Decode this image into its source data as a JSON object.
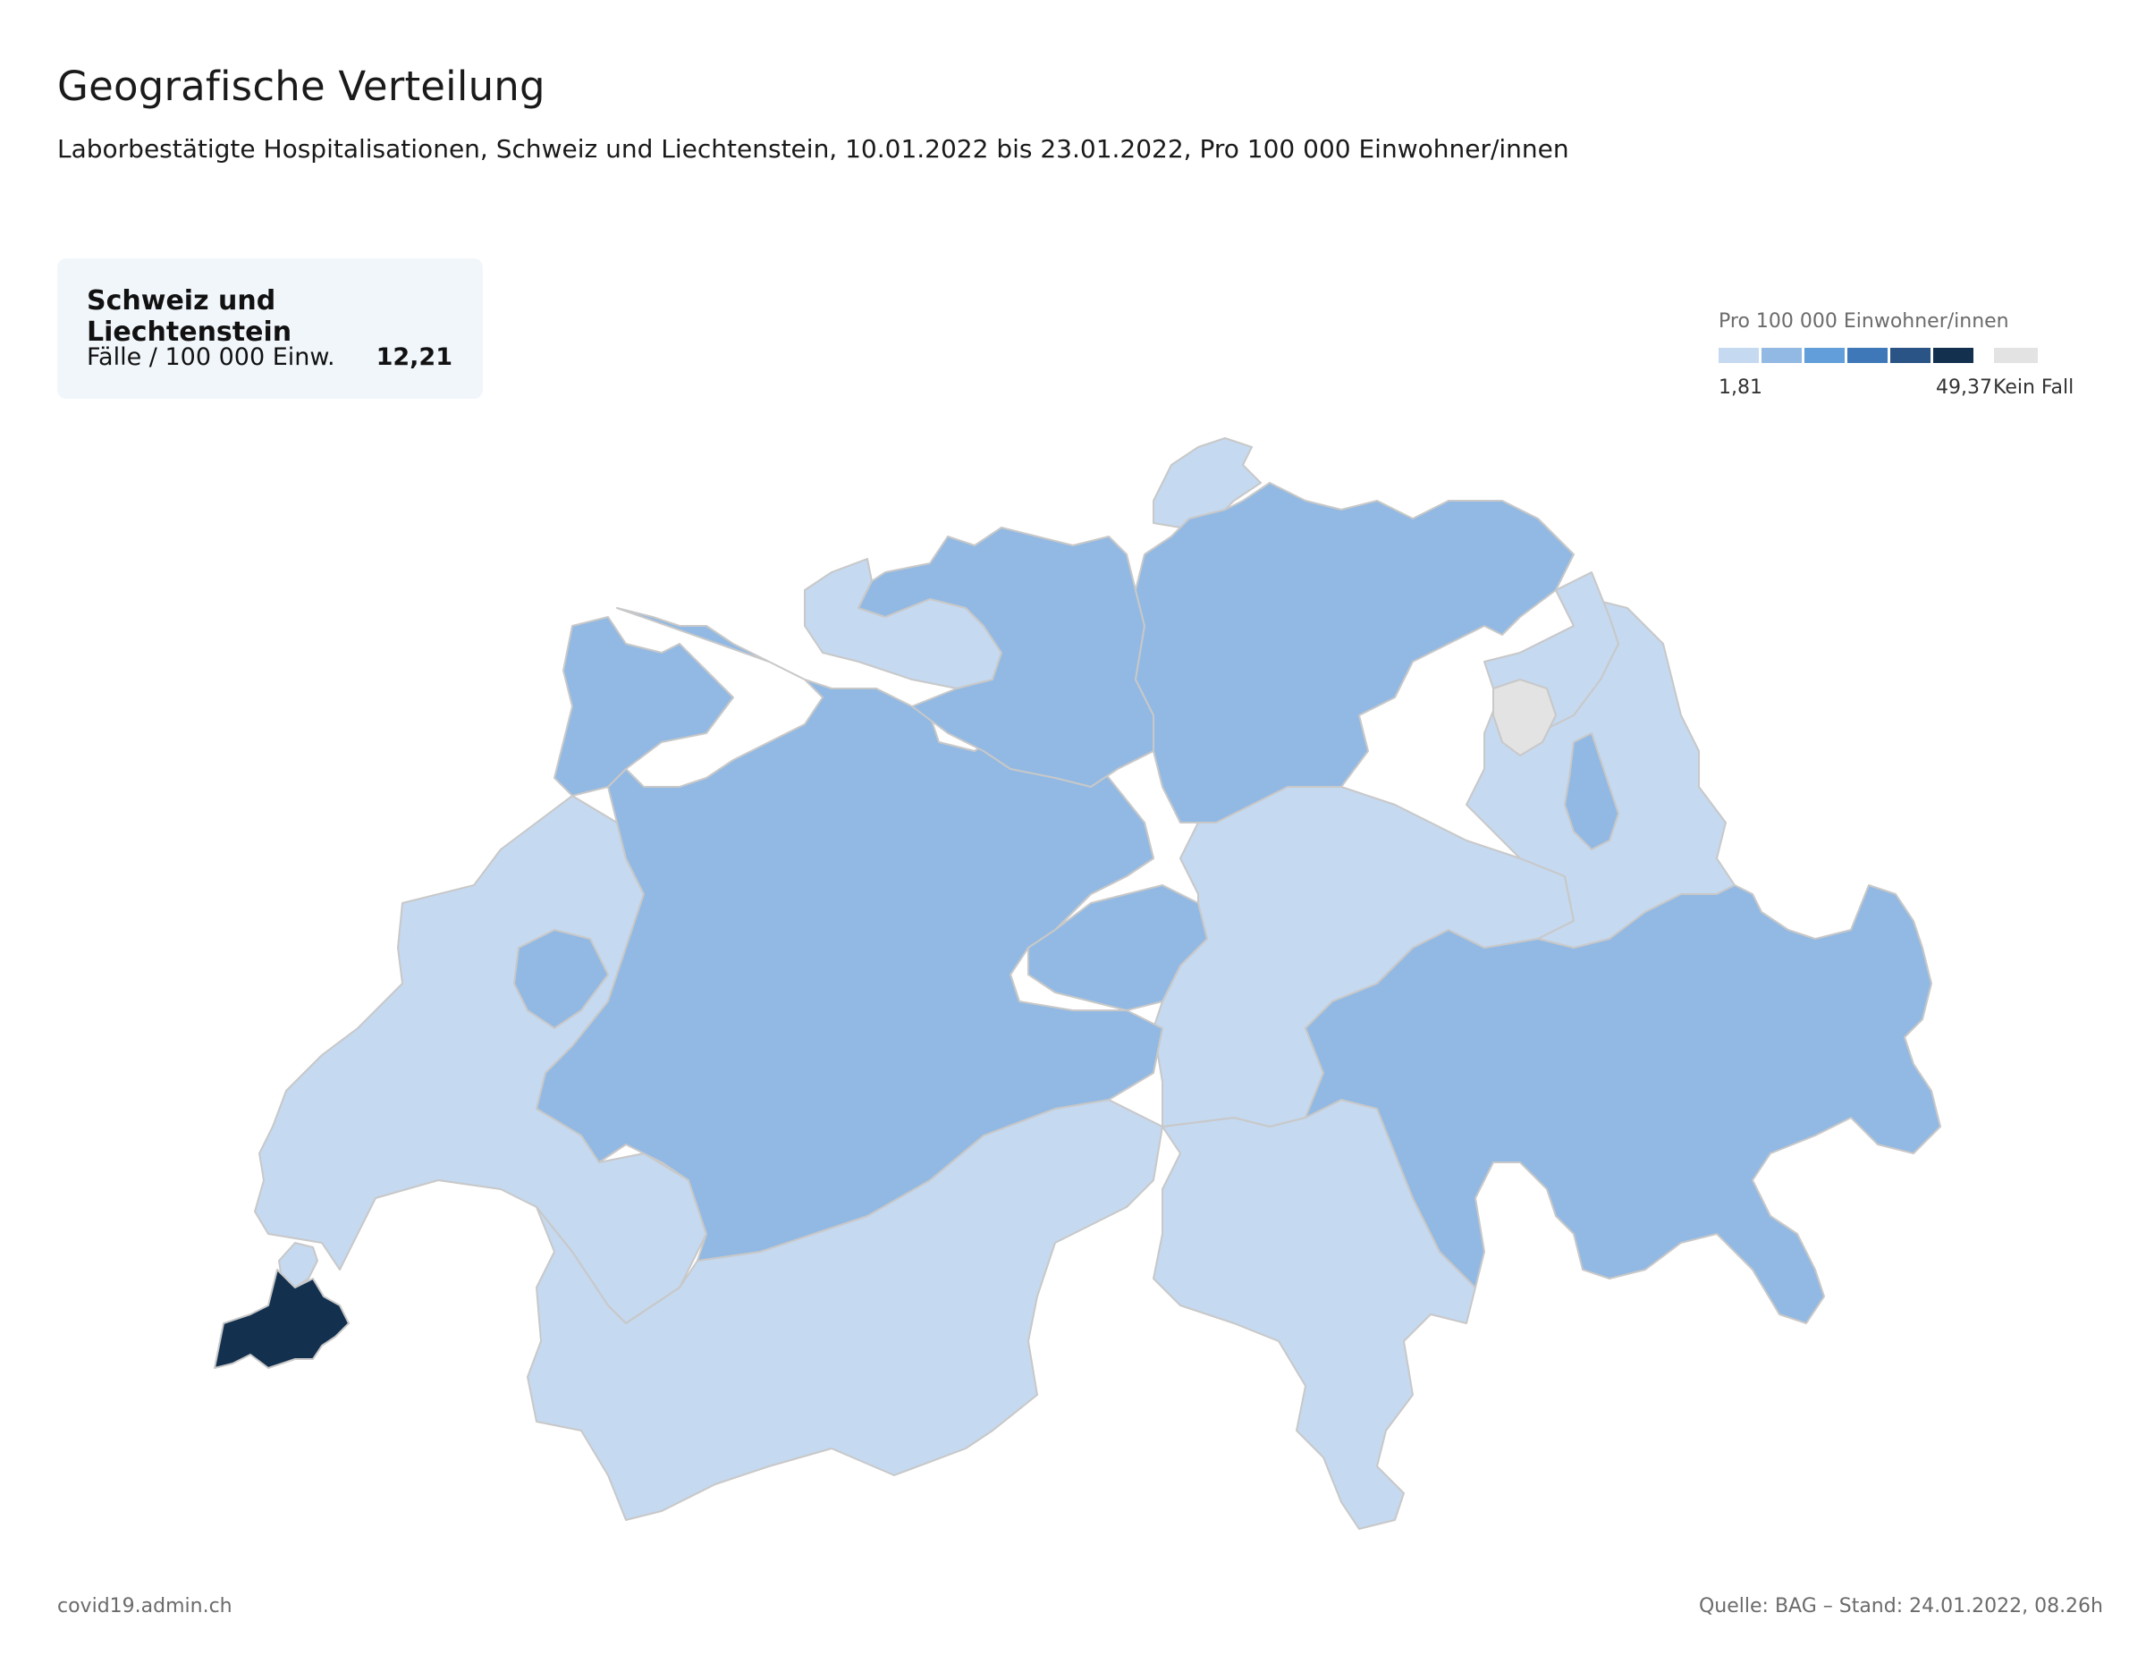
{
  "header": {
    "title": "Geografische Verteilung",
    "subtitle": "Laborbestätigte Hospitalisationen, Schweiz und Liechtenstein, 10.01.2022 bis 23.01.2022, Pro 100 000 Einwohner/innen"
  },
  "summary": {
    "title": "Schweiz und Liechtenstein",
    "label": "Fälle / 100 000 Einw.",
    "value": "12,21"
  },
  "legend": {
    "title": "Pro 100 000 Einwohner/innen",
    "min_label": "1,81",
    "max_label": "49,37",
    "no_case_label": "Kein Fall",
    "scale_colors": [
      "#c5d9f0",
      "#92b9e3",
      "#629ed9",
      "#3f78b9",
      "#2a5485",
      "#13304f"
    ],
    "no_case_color": "#e3e3e3"
  },
  "colors": {
    "level_1": "#c5d9f0",
    "level_2": "#92b9e3",
    "level_6": "#13304f",
    "no_case": "#e3e3e3",
    "border": "#c8c8c8"
  },
  "footer": {
    "site": "covid19.admin.ch",
    "source": "Quelle: BAG – Stand: 24.01.2022, 08.26h"
  }
}
